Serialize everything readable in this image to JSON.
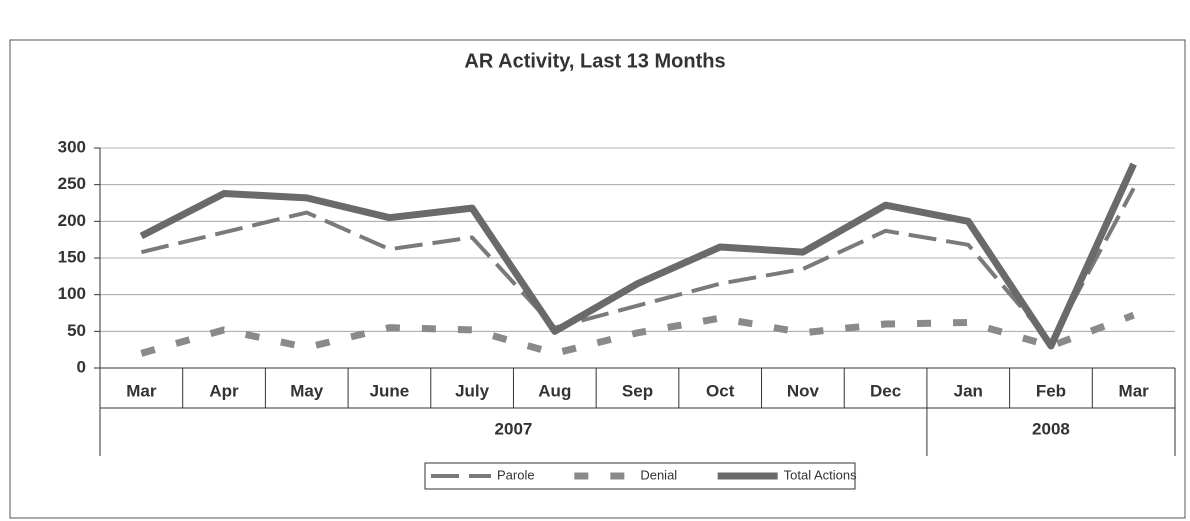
{
  "chart_data": {
    "type": "line",
    "title": "AR Activity, Last 13 Months",
    "categories": [
      "Mar",
      "Apr",
      "May",
      "June",
      "July",
      "Aug",
      "Sep",
      "Oct",
      "Nov",
      "Dec",
      "Jan",
      "Feb",
      "Mar"
    ],
    "groups": [
      {
        "label": "2007",
        "count": 10
      },
      {
        "label": "2008",
        "count": 3
      }
    ],
    "series": [
      {
        "name": "Parole",
        "color": "#7a7a7a",
        "style": "long-dash",
        "values": [
          158,
          185,
          212,
          162,
          178,
          55,
          85,
          115,
          135,
          187,
          168,
          35,
          245
        ]
      },
      {
        "name": "Denial",
        "color": "#8a8a8a",
        "style": "short-dash",
        "values": [
          20,
          52,
          28,
          55,
          52,
          20,
          48,
          68,
          48,
          60,
          62,
          30,
          72
        ]
      },
      {
        "name": "Total Actions",
        "color": "#6a6a6a",
        "style": "solid",
        "values": [
          180,
          238,
          232,
          205,
          218,
          50,
          115,
          165,
          158,
          222,
          200,
          30,
          278
        ]
      }
    ],
    "ylim": [
      0,
      300
    ],
    "yticks": [
      0,
      50,
      100,
      150,
      200,
      250,
      300
    ],
    "grid": true,
    "legend": "bottom"
  }
}
